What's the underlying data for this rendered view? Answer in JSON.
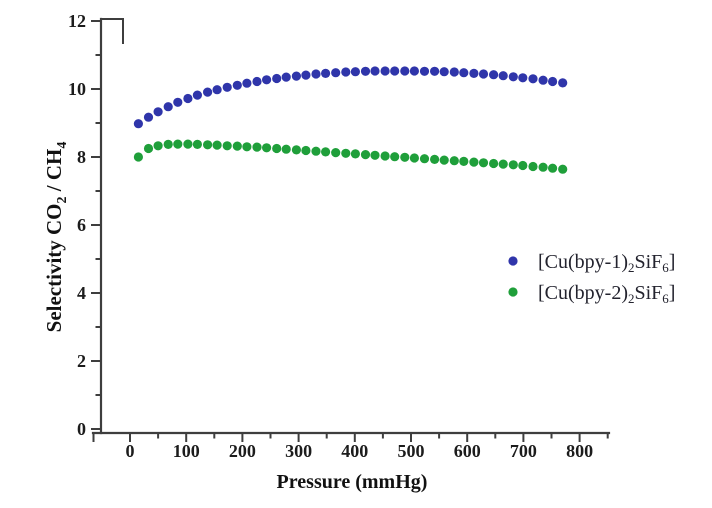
{
  "figure": {
    "background": "#ffffff"
  },
  "style": {
    "axis_color": "#3e3e3e",
    "tick_label_color": "#1c1c1c",
    "axis_title_color": "#111111",
    "legend_text_color": "#23232e"
  },
  "chart_data": {
    "type": "scatter",
    "title": "",
    "xlabel": "Pressure (mmHg)",
    "ylabel": "Selectivity CO2 / CH4",
    "ylabel_segments": [
      {
        "t": "Selectivity CO"
      },
      {
        "t": "2",
        "sub": true
      },
      {
        "t": " / CH"
      },
      {
        "t": "4",
        "sub": true
      }
    ],
    "xlim": [
      -65,
      855
    ],
    "ylim": [
      0,
      12
    ],
    "x_major_ticks": [
      0,
      100,
      200,
      300,
      400,
      500,
      600,
      700,
      800
    ],
    "x_minor_ticks": [
      50,
      150,
      250,
      350,
      450,
      550,
      650,
      750,
      850
    ],
    "y_major_ticks": [
      0,
      2,
      4,
      6,
      8,
      10,
      12
    ],
    "y_minor_ticks": [
      1,
      3,
      5,
      7,
      9,
      11
    ],
    "grid": false,
    "legend": {
      "position": "right-center",
      "marker": "circle"
    },
    "x": [
      15,
      33,
      50,
      68,
      85,
      103,
      120,
      138,
      155,
      173,
      191,
      208,
      226,
      243,
      261,
      278,
      296,
      313,
      331,
      348,
      366,
      384,
      401,
      419,
      436,
      454,
      471,
      489,
      506,
      524,
      542,
      559,
      577,
      594,
      612,
      629,
      647,
      664,
      682,
      699,
      717,
      735,
      752,
      770
    ],
    "series": [
      {
        "name": "[Cu(bpy-1)2SiF6]",
        "name_segments": [
          {
            "t": "[Cu(bpy-1)"
          },
          {
            "t": "2",
            "sub": true
          },
          {
            "t": "SiF"
          },
          {
            "t": "6",
            "sub": true
          },
          {
            "t": "]"
          }
        ],
        "color": "#2f35aa",
        "marker": "circle",
        "values": [
          8.98,
          9.17,
          9.33,
          9.48,
          9.61,
          9.72,
          9.82,
          9.91,
          9.98,
          10.05,
          10.11,
          10.17,
          10.22,
          10.27,
          10.31,
          10.35,
          10.38,
          10.41,
          10.44,
          10.46,
          10.48,
          10.5,
          10.51,
          10.52,
          10.53,
          10.53,
          10.53,
          10.53,
          10.53,
          10.52,
          10.52,
          10.51,
          10.5,
          10.48,
          10.46,
          10.44,
          10.42,
          10.39,
          10.36,
          10.33,
          10.3,
          10.26,
          10.22,
          10.18
        ]
      },
      {
        "name": "[Cu(bpy-2)2SiF6]",
        "name_segments": [
          {
            "t": "[Cu(bpy-2)"
          },
          {
            "t": "2",
            "sub": true
          },
          {
            "t": "SiF"
          },
          {
            "t": "6",
            "sub": true
          },
          {
            "t": "]"
          }
        ],
        "color": "#1f9f3a",
        "marker": "circle",
        "values": [
          8.0,
          8.25,
          8.33,
          8.37,
          8.38,
          8.38,
          8.37,
          8.36,
          8.35,
          8.33,
          8.32,
          8.3,
          8.29,
          8.27,
          8.25,
          8.23,
          8.21,
          8.19,
          8.17,
          8.15,
          8.13,
          8.11,
          8.09,
          8.07,
          8.05,
          8.03,
          8.01,
          7.99,
          7.97,
          7.95,
          7.93,
          7.91,
          7.89,
          7.87,
          7.85,
          7.83,
          7.81,
          7.79,
          7.77,
          7.75,
          7.72,
          7.7,
          7.67,
          7.64
        ]
      }
    ]
  }
}
